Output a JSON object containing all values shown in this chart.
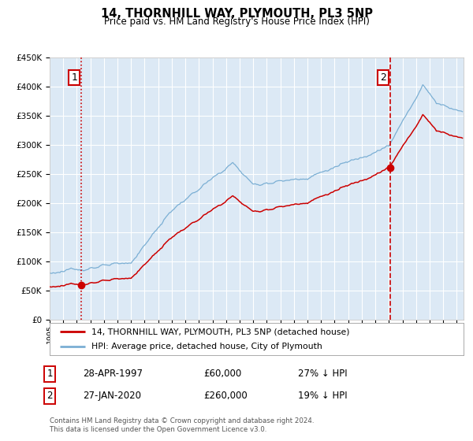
{
  "title": "14, THORNHILL WAY, PLYMOUTH, PL3 5NP",
  "subtitle": "Price paid vs. HM Land Registry's House Price Index (HPI)",
  "legend_line1": "14, THORNHILL WAY, PLYMOUTH, PL3 5NP (detached house)",
  "legend_line2": "HPI: Average price, detached house, City of Plymouth",
  "annotation1_label": "1",
  "annotation1_date": "28-APR-1997",
  "annotation1_price": "£60,000",
  "annotation1_hpi": "27% ↓ HPI",
  "annotation2_label": "2",
  "annotation2_date": "27-JAN-2020",
  "annotation2_price": "£260,000",
  "annotation2_hpi": "19% ↓ HPI",
  "footnote_line1": "Contains HM Land Registry data © Crown copyright and database right 2024.",
  "footnote_line2": "This data is licensed under the Open Government Licence v3.0.",
  "hpi_color": "#7bafd4",
  "property_color": "#cc0000",
  "plot_bg_color": "#dce9f5",
  "grid_color": "#ffffff",
  "vline1_style": "dotted",
  "vline2_style": "dashed",
  "vline_color": "#cc0000",
  "marker_color": "#cc0000",
  "ylim": [
    0,
    450000
  ],
  "xlim_start": 1995.0,
  "xlim_end": 2025.5,
  "purchase1_x": 1997.32,
  "purchase1_y": 60000,
  "purchase2_x": 2020.07,
  "purchase2_y": 260000,
  "start_year": 1995.0,
  "end_year": 2025.5
}
